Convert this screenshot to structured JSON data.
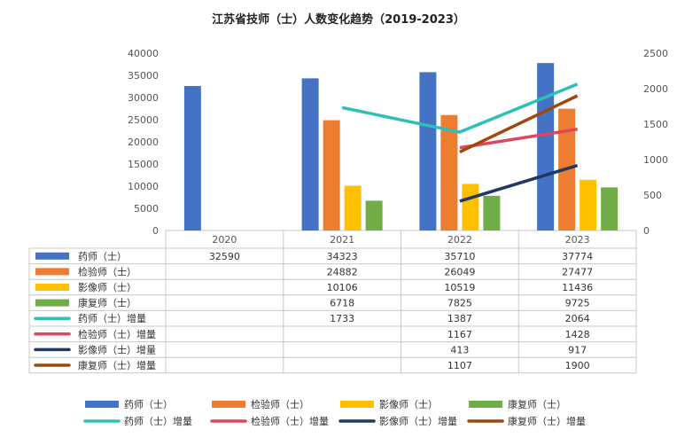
{
  "chart_data": {
    "type": "bar",
    "combo": "bar+line",
    "title": "江苏省技师（士）人数变化趋势（2019-2023）",
    "categories": [
      "2020",
      "2021",
      "2022",
      "2023"
    ],
    "y_left": {
      "ylim": [
        0,
        40000
      ],
      "ticks": [
        "0",
        "5000",
        "10000",
        "15000",
        "20000",
        "25000",
        "30000",
        "35000",
        "40000"
      ]
    },
    "y_right": {
      "ylim": [
        0,
        2500
      ],
      "ticks": [
        "0",
        "500",
        "1000",
        "1500",
        "2000",
        "2500"
      ]
    },
    "grid": false,
    "legend_position": "bottom",
    "series": [
      {
        "name": "药师（士）",
        "kind": "bar",
        "axis": "left",
        "color": "#4472C4",
        "values": [
          32590,
          34323,
          35710,
          37774
        ]
      },
      {
        "name": "检验师（士）",
        "kind": "bar",
        "axis": "left",
        "color": "#ED7D31",
        "values": [
          null,
          24882,
          26049,
          27477
        ]
      },
      {
        "name": "影像师（士）",
        "kind": "bar",
        "axis": "left",
        "color": "#FFC000",
        "values": [
          null,
          10106,
          10519,
          11436
        ]
      },
      {
        "name": "康复师（士）",
        "kind": "bar",
        "axis": "left",
        "color": "#70AD47",
        "values": [
          null,
          6718,
          7825,
          9725
        ]
      },
      {
        "name": "药师（士）增量",
        "kind": "line",
        "axis": "right",
        "color": "#2EBFB7",
        "values": [
          null,
          1733,
          1387,
          2064
        ]
      },
      {
        "name": "检验师（士）增量",
        "kind": "line",
        "axis": "right",
        "color": "#E0475E",
        "values": [
          null,
          null,
          1167,
          1428
        ]
      },
      {
        "name": "影像师（士）增量",
        "kind": "line",
        "axis": "right",
        "color": "#203864",
        "values": [
          null,
          null,
          413,
          917
        ]
      },
      {
        "name": "康复师（士）增量",
        "kind": "line",
        "axis": "right",
        "color": "#9E480E",
        "values": [
          null,
          null,
          1107,
          1900
        ]
      }
    ]
  }
}
